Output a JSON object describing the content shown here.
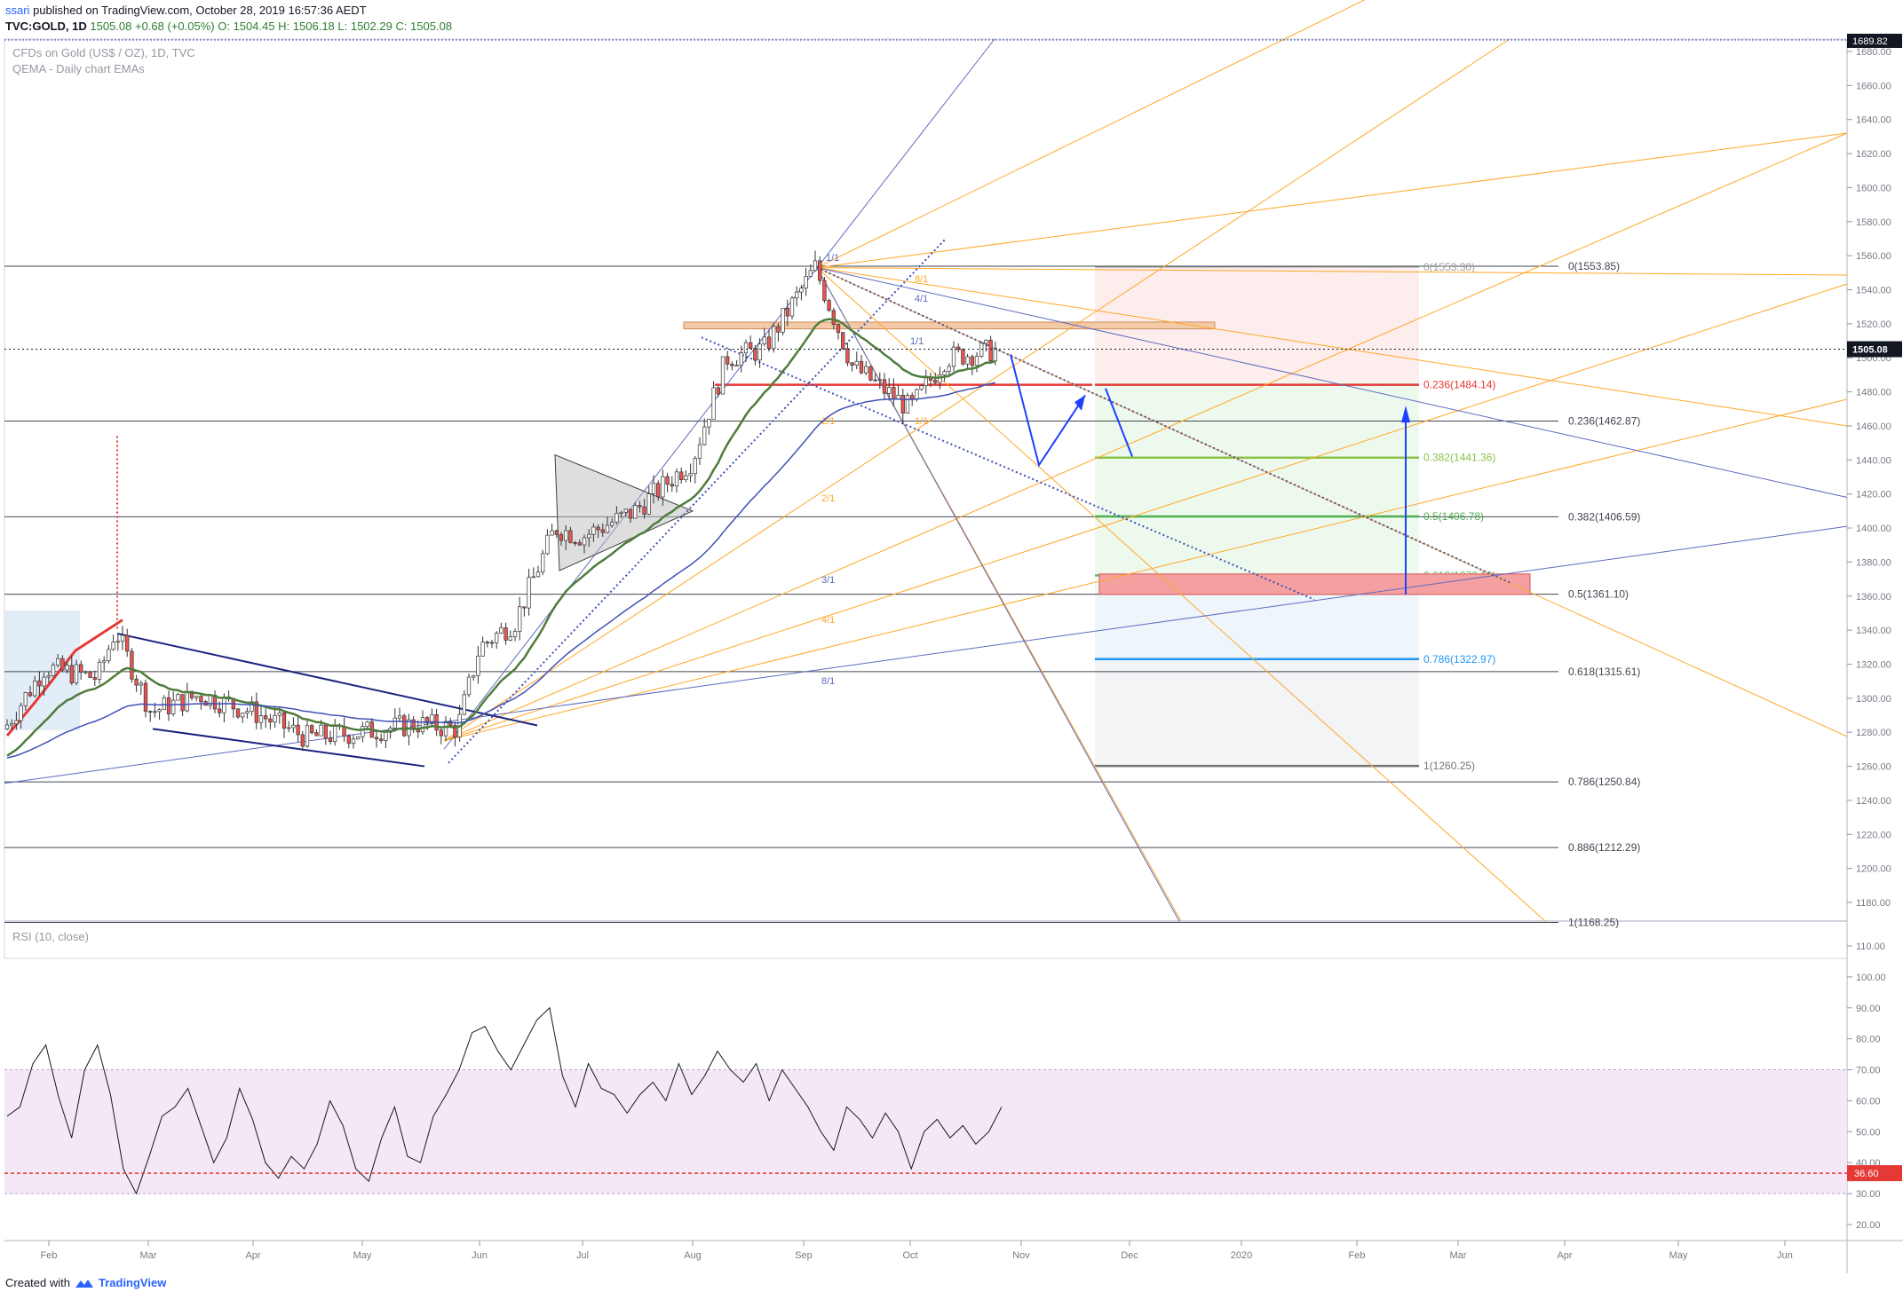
{
  "header": {
    "user": "ssari",
    "published": "published on TradingView.com, October 28, 2019 16:57:36 AEDT",
    "symbol": "TVC:GOLD, 1D",
    "last": "1505.08",
    "change": "+0.68 (+0.05%)",
    "ohlc": "O: 1504.45 H: 1506.18 L: 1502.29 C: 1505.08",
    "legend_line1": "CFDs on Gold (US$ / OZ), 1D, TVC",
    "legend_line2": "QEMA - Daily chart EMAs"
  },
  "footer": {
    "created_with": "Created with",
    "brand": "TradingView"
  },
  "chart_data": {
    "type": "line",
    "title": "CFDs on Gold (US$ / OZ), 1D, TVC",
    "price_axis": {
      "ylim": [
        1165,
        1690
      ],
      "ticks": [
        1680,
        1660,
        1640,
        1620,
        1600,
        1580,
        1560,
        1540,
        1520,
        1500,
        1480,
        1460,
        1440,
        1420,
        1400,
        1380,
        1360,
        1340,
        1320,
        1300,
        1280,
        1260,
        1240,
        1220,
        1200,
        1180
      ],
      "last_price_label": "1505.08",
      "top_label": "1689.82"
    },
    "rsi_axis": {
      "ylim": [
        15,
        115
      ],
      "ticks": [
        110,
        100,
        90,
        80,
        70,
        60,
        50,
        40,
        30,
        20
      ],
      "last_label": "36.60",
      "band": [
        30,
        70
      ]
    },
    "rsi_legend": "RSI (10, close)",
    "x_axis": {
      "ticks": [
        "Feb",
        "Mar",
        "Apr",
        "May",
        "Jun",
        "Jul",
        "Aug",
        "Sep",
        "Oct",
        "Nov",
        "Dec",
        "2020",
        "Feb",
        "Mar",
        "Apr",
        "May",
        "Jun"
      ]
    },
    "price_series": {
      "name": "GOLD",
      "x": [
        "Jan 21",
        "Feb 1",
        "Feb 15",
        "Feb 20",
        "Mar 1",
        "Mar 15",
        "Apr 1",
        "Apr 15",
        "May 1",
        "May 15",
        "May 28",
        "Jun 5",
        "Jun 15",
        "Jun 25",
        "Jul 1",
        "Jul 15",
        "Aug 1",
        "Aug 10",
        "Aug 20",
        "Sep 4",
        "Sep 15",
        "Oct 1",
        "Oct 10",
        "Oct 25"
      ],
      "close": [
        1282,
        1318,
        1312,
        1340,
        1292,
        1302,
        1292,
        1277,
        1280,
        1285,
        1282,
        1330,
        1345,
        1400,
        1395,
        1410,
        1440,
        1500,
        1505,
        1553,
        1495,
        1470,
        1500,
        1505
      ]
    },
    "rsi_series": {
      "name": "RSI (10, close)",
      "values": [
        55,
        58,
        72,
        78,
        61,
        48,
        70,
        78,
        62,
        38,
        30,
        42,
        55,
        58,
        64,
        52,
        40,
        48,
        64,
        54,
        40,
        35,
        42,
        38,
        46,
        60,
        52,
        38,
        34,
        48,
        58,
        42,
        40,
        55,
        62,
        70,
        82,
        84,
        76,
        70,
        78,
        86,
        90,
        68,
        58,
        72,
        64,
        62,
        56,
        62,
        66,
        60,
        72,
        62,
        68,
        76,
        70,
        66,
        72,
        60,
        70,
        64,
        58,
        50,
        44,
        58,
        54,
        48,
        56,
        50,
        38,
        50,
        54,
        48,
        52,
        46,
        50,
        58
      ]
    },
    "fib_right_labels": [
      "0(1553.85)",
      "0.236(1462.87)",
      "0.382(1406.59)",
      "0.5(1361.10)",
      "0.618(1315.61)",
      "0.786(1250.84)",
      "0.886(1212.29)",
      "1(1168.25)"
    ],
    "fib_mid_labels": [
      "0(1553.30)",
      "0.236(1484.14)",
      "0.382(1441.36)",
      "0.5(1406.78)",
      "0.618(1372.19)",
      "0.786(1322.97)",
      "1(1260.25)"
    ],
    "fan_labels": [
      "1/1",
      "8/1",
      "4/1",
      "2/1",
      "1/1",
      "2/1",
      "3/1",
      "4/1",
      "8/1",
      "1/1"
    ]
  }
}
